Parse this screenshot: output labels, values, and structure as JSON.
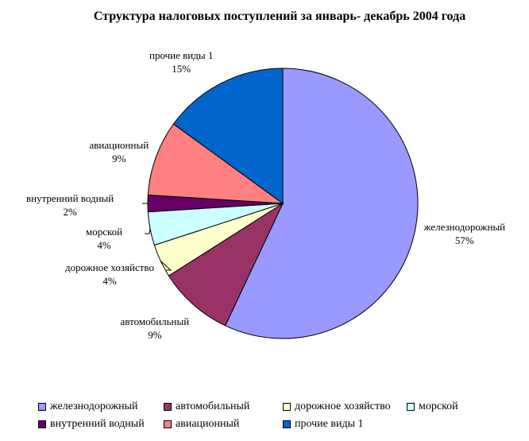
{
  "chart_data": {
    "type": "pie",
    "title": "Структура налоговых поступлений за январь- декабрь 2004 года",
    "slices": [
      {
        "name": "железнодорожный",
        "value": 57,
        "label": "57%",
        "color": "#9999ff"
      },
      {
        "name": "автомобильный",
        "value": 9,
        "label": "9%",
        "color": "#993366"
      },
      {
        "name": "дорожное хозяйство",
        "value": 4,
        "label": "4%",
        "color": "#ffffcc"
      },
      {
        "name": "морской",
        "value": 4,
        "label": "4%",
        "color": "#ccffff"
      },
      {
        "name": "внутренний водный",
        "value": 2,
        "label": "2%",
        "color": "#660066"
      },
      {
        "name": "авиационный",
        "value": 9,
        "label": "9%",
        "color": "#ff8080"
      },
      {
        "name": "прочие виды 1",
        "value": 15,
        "label": "15%",
        "color": "#0066cc"
      }
    ],
    "legend_position": "bottom"
  }
}
